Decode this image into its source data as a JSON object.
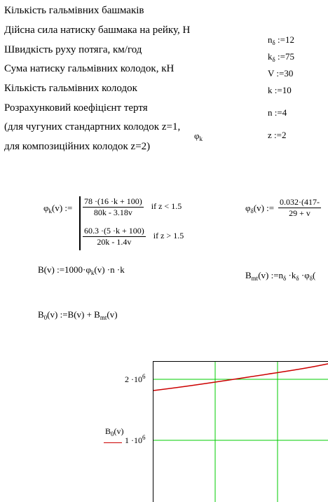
{
  "descriptions": [
    "Кількість гальмівних башмаків",
    "Дійсна сила натиску башмака на рейку, Н",
    "Швидкість руху потяга, км/год",
    "Сума натиску гальмівних колодок, кН",
    "Кількість гальмівних колодок",
    "Розрахунковий коефіцієнт тертя",
    "(для чугуних стандартних колодок z=1,",
    "для композиційних колодок z=2)"
  ],
  "params": {
    "n_delta": {
      "base": "n",
      "sub": "δ",
      "assign": " :=12"
    },
    "k_delta": {
      "base": "k",
      "sub": "δ",
      "assign": " :=75"
    },
    "V": {
      "text": "V :=30"
    },
    "k": {
      "text": "k :=10"
    },
    "n": {
      "text": "n :=4"
    },
    "z": {
      "text": "z :=2"
    },
    "phi_k_label": {
      "base": "φ",
      "sub": "k"
    }
  },
  "formulas": {
    "phi_k": {
      "lhs_base": "φ",
      "lhs_sub": "k",
      "lhs_rest": "(v) :=",
      "case1_num": "78 ·(16 ·k + 100)",
      "case1_den": "80k -  3.18v",
      "case1_cond": "if  z < 1.5",
      "case2_num": "60.3 ·(5 ·k + 100)",
      "case2_den": "20k -  1.4v",
      "case2_cond": "if  z > 1.5"
    },
    "phi_delta": {
      "lhs_base": "φ",
      "lhs_sub": "δ",
      "lhs_rest": "(v) :=",
      "num": "0.032·(417-",
      "den": "29 + v"
    },
    "B": {
      "start": "B(v) :=1000·",
      "phi": "φ",
      "phi_sub": "k",
      "end": "(v)  ·n  ·k"
    },
    "B_mt": {
      "base": "B",
      "sub": "mt",
      "rest": "(v) :=n",
      "sub2": "δ",
      "rest2": " ·k",
      "sub3": "δ",
      "rest3": " ·φ",
      "sub4": "δ",
      "rest4": "("
    },
    "B0": {
      "base": "B",
      "sub": "0",
      "rest": "(v) :=B(v) + B",
      "sub2": "mt",
      "rest2": "(v)"
    }
  },
  "plot": {
    "legend_base": "B",
    "legend_sub": "0",
    "legend_rest": "(v)",
    "y_ticks": [
      {
        "base": "2 ·10",
        "exp": "6"
      },
      {
        "base": "1 ·10",
        "exp": "6"
      }
    ],
    "curve_color": "#cc0000",
    "grid_color": "#00cc00"
  }
}
